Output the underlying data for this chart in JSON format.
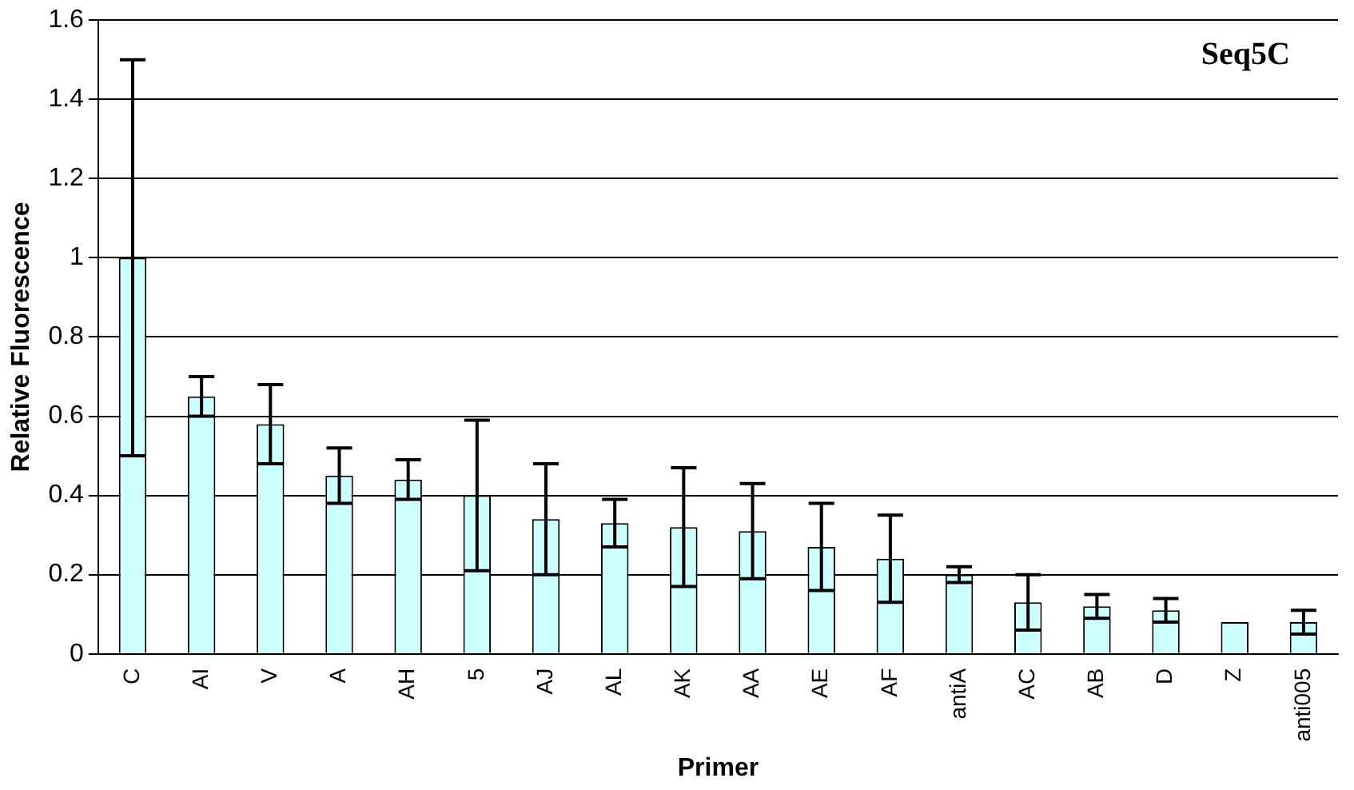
{
  "chart_data": {
    "type": "bar",
    "title": "Seq5C",
    "xlabel": "Primer",
    "ylabel": "Relative Fluorescence",
    "categories": [
      "C",
      "AI",
      "V",
      "A",
      "AH",
      "5",
      "AJ",
      "AL",
      "AK",
      "AA",
      "AE",
      "AF",
      "antiA",
      "AC",
      "AB",
      "D",
      "Z",
      "anti005"
    ],
    "values": [
      1.0,
      0.65,
      0.58,
      0.45,
      0.44,
      0.4,
      0.34,
      0.33,
      0.32,
      0.31,
      0.27,
      0.24,
      0.2,
      0.13,
      0.12,
      0.11,
      0.08,
      0.08
    ],
    "errors": [
      0.5,
      0.05,
      0.1,
      0.07,
      0.05,
      0.19,
      0.14,
      0.06,
      0.15,
      0.12,
      0.11,
      0.11,
      0.02,
      0.07,
      0.03,
      0.03,
      null,
      0.03
    ],
    "color": "#ccffff",
    "ylim": [
      0,
      1.6
    ],
    "yticks": [
      0,
      0.2,
      0.4,
      0.6,
      0.8,
      1,
      1.2,
      1.4,
      1.6
    ],
    "grid": "y",
    "legend": false
  }
}
